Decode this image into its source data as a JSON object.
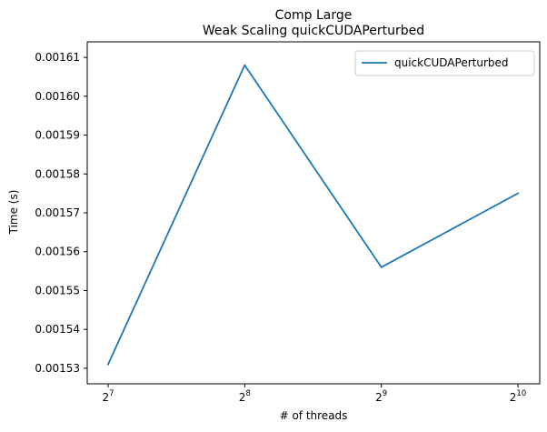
{
  "chart_data": {
    "type": "line",
    "title": "Comp Large",
    "subtitle": "Weak Scaling quickCUDAPerturbed",
    "xlabel": "# of threads",
    "ylabel": "Time (s)",
    "x_scale": "log2",
    "x_tick_base": "2",
    "x_ticks": [
      {
        "value": 128,
        "exp": "7"
      },
      {
        "value": 256,
        "exp": "8"
      },
      {
        "value": 512,
        "exp": "9"
      },
      {
        "value": 1024,
        "exp": "10"
      }
    ],
    "y_ticks": [
      "0.00153",
      "0.00154",
      "0.00155",
      "0.00156",
      "0.00157",
      "0.00158",
      "0.00159",
      "0.00160",
      "0.00161"
    ],
    "ylim": [
      0.001526,
      0.001614
    ],
    "grid": false,
    "legend_position": "top-right",
    "series": [
      {
        "name": "quickCUDAPerturbed",
        "color": "#1f77b4",
        "x": [
          128,
          256,
          512,
          1024
        ],
        "y": [
          0.001531,
          0.001608,
          0.001556,
          0.001575
        ]
      }
    ]
  }
}
